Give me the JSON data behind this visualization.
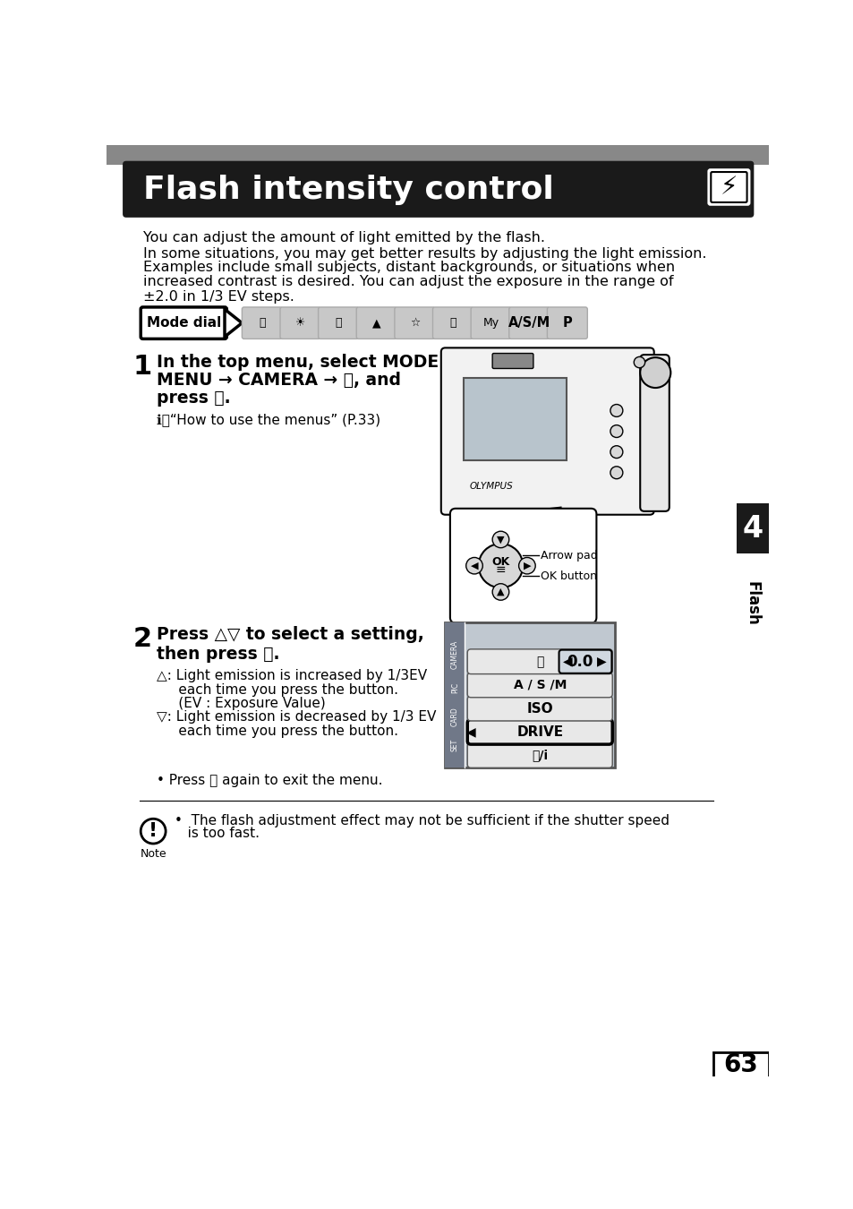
{
  "title": "Flash intensity control",
  "title_bg": "#1a1a1a",
  "title_color": "#ffffff",
  "page_bg": "#ffffff",
  "body_text_color": "#000000",
  "gray_top": "#888888",
  "intro_line1": "You can adjust the amount of light emitted by the flash.",
  "intro_line2": "In some situations, you may get better results by adjusting the light emission.",
  "intro_line3": "Examples include small subjects, distant backgrounds, or situations when",
  "intro_line4": "increased contrast is desired. You can adjust the exposure in the range of",
  "intro_line5": "±2.0 in 1/3 EV steps.",
  "mode_dial_label": "Mode dial",
  "step1_num": "1",
  "step1_line1": "In the top menu, select MODE",
  "step1_line2": "MENU → CAMERA → ⓧ, and",
  "step1_line3": "press ⓘ.",
  "step1_subtext": "ℹⓈ“How to use the menus” (P.33)",
  "arrow_pad_label": "Arrow pad",
  "ok_button_label": "OK button",
  "step2_num": "2",
  "step2_line1": "Press △▽ to select a setting,",
  "step2_line2": "then press Ⓢ.",
  "step2_up1": "△: Light emission is increased by 1/3EV",
  "step2_up2": "     each time you press the button.",
  "step2_up3": "     (EV : Exposure Value)",
  "step2_dn1": "▽: Light emission is decreased by 1/3 EV",
  "step2_dn2": "     each time you press the button.",
  "exit_text": "• Press Ⓢ again to exit the menu.",
  "note_text1": "•  The flash adjustment effect may not be sufficient if the shutter speed",
  "note_text2": "   is too fast.",
  "note_label": "Note",
  "chapter_num": "4",
  "chapter_label": "Flash",
  "page_num": "63",
  "menu_items": [
    "DRIVE",
    "ISO",
    "A / S /M"
  ],
  "menu_top_item": "ⓨ/i",
  "menu_bottom_item": "ⓧ",
  "menu_value": "0.0",
  "menu_side_label": "CAMERA",
  "menu_side_label2": "PIC",
  "menu_side_label3": "CARD",
  "menu_side_label4": "SET"
}
